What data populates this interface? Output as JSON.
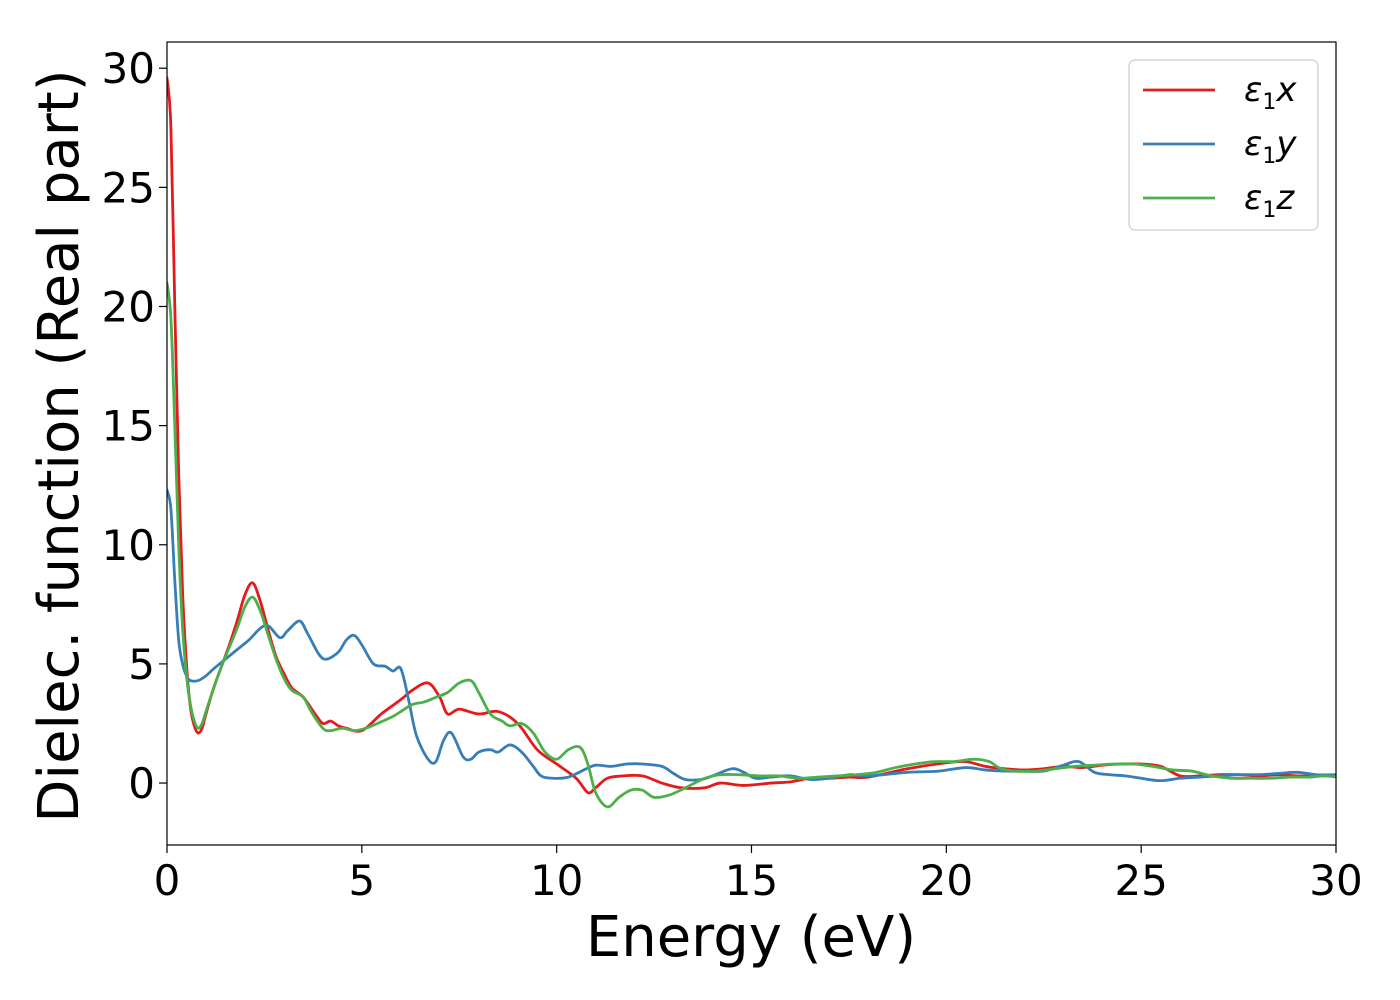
{
  "chart_data": {
    "type": "line",
    "title": "",
    "xlabel": "Energy (eV)",
    "ylabel": "Dielec. function (Real part)",
    "xlim": [
      0,
      30
    ],
    "ylim": [
      -2.6,
      31.1
    ],
    "xticks": [
      0,
      5,
      10,
      15,
      20,
      25,
      30
    ],
    "yticks": [
      0,
      5,
      10,
      15,
      20,
      25,
      30
    ],
    "grid": false,
    "legend_position": "top-right",
    "series": [
      {
        "name": "ε1x",
        "legend": {
          "base": "ε",
          "sub": "1",
          "axis": "x"
        },
        "color": "#e41a1c",
        "points": [
          [
            0.0,
            29.6
          ],
          [
            0.1,
            27.5
          ],
          [
            0.2,
            20.0
          ],
          [
            0.3,
            13.0
          ],
          [
            0.4,
            8.0
          ],
          [
            0.5,
            5.0
          ],
          [
            0.6,
            3.2
          ],
          [
            0.7,
            2.4
          ],
          [
            0.8,
            2.1
          ],
          [
            0.9,
            2.3
          ],
          [
            1.0,
            2.9
          ],
          [
            1.2,
            4.0
          ],
          [
            1.4,
            4.9
          ],
          [
            1.6,
            5.8
          ],
          [
            1.8,
            6.8
          ],
          [
            2.0,
            7.9
          ],
          [
            2.2,
            8.4
          ],
          [
            2.4,
            7.6
          ],
          [
            2.6,
            6.4
          ],
          [
            2.8,
            5.3
          ],
          [
            3.0,
            4.6
          ],
          [
            3.2,
            4.0
          ],
          [
            3.5,
            3.6
          ],
          [
            3.8,
            2.9
          ],
          [
            4.0,
            2.5
          ],
          [
            4.2,
            2.6
          ],
          [
            4.4,
            2.4
          ],
          [
            4.6,
            2.3
          ],
          [
            5.0,
            2.2
          ],
          [
            5.5,
            2.9
          ],
          [
            6.0,
            3.5
          ],
          [
            6.3,
            3.9
          ],
          [
            6.7,
            4.2
          ],
          [
            7.0,
            3.6
          ],
          [
            7.2,
            2.9
          ],
          [
            7.5,
            3.1
          ],
          [
            8.0,
            2.9
          ],
          [
            8.5,
            3.0
          ],
          [
            9.0,
            2.5
          ],
          [
            9.5,
            1.4
          ],
          [
            10.0,
            0.8
          ],
          [
            10.5,
            0.2
          ],
          [
            10.8,
            -0.4
          ],
          [
            11.0,
            -0.2
          ],
          [
            11.3,
            0.2
          ],
          [
            11.7,
            0.3
          ],
          [
            12.2,
            0.3
          ],
          [
            12.7,
            0.0
          ],
          [
            13.2,
            -0.2
          ],
          [
            13.8,
            -0.2
          ],
          [
            14.2,
            0.0
          ],
          [
            14.8,
            -0.1
          ],
          [
            15.5,
            0.0
          ],
          [
            16.0,
            0.05
          ],
          [
            16.5,
            0.2
          ],
          [
            17.0,
            0.2
          ],
          [
            17.5,
            0.25
          ],
          [
            18.0,
            0.25
          ],
          [
            19.0,
            0.6
          ],
          [
            20.0,
            0.85
          ],
          [
            20.5,
            0.9
          ],
          [
            21.0,
            0.7
          ],
          [
            21.5,
            0.6
          ],
          [
            22.0,
            0.55
          ],
          [
            22.5,
            0.6
          ],
          [
            23.0,
            0.7
          ],
          [
            23.5,
            0.65
          ],
          [
            24.0,
            0.75
          ],
          [
            24.5,
            0.8
          ],
          [
            25.0,
            0.8
          ],
          [
            25.5,
            0.7
          ],
          [
            26.0,
            0.3
          ],
          [
            26.5,
            0.3
          ],
          [
            27.0,
            0.35
          ],
          [
            27.5,
            0.35
          ],
          [
            28.0,
            0.3
          ],
          [
            28.5,
            0.35
          ],
          [
            29.0,
            0.3
          ],
          [
            29.5,
            0.3
          ],
          [
            30.0,
            0.3
          ]
        ]
      },
      {
        "name": "ε1y",
        "legend": {
          "base": "ε",
          "sub": "1",
          "axis": "y"
        },
        "color": "#377eb8",
        "points": [
          [
            0.0,
            12.3
          ],
          [
            0.1,
            11.5
          ],
          [
            0.2,
            8.5
          ],
          [
            0.3,
            6.0
          ],
          [
            0.4,
            5.0
          ],
          [
            0.5,
            4.5
          ],
          [
            0.6,
            4.3
          ],
          [
            0.8,
            4.3
          ],
          [
            1.0,
            4.5
          ],
          [
            1.2,
            4.8
          ],
          [
            1.5,
            5.2
          ],
          [
            1.8,
            5.6
          ],
          [
            2.1,
            6.0
          ],
          [
            2.4,
            6.5
          ],
          [
            2.6,
            6.6
          ],
          [
            2.9,
            6.1
          ],
          [
            3.1,
            6.4
          ],
          [
            3.4,
            6.8
          ],
          [
            3.6,
            6.3
          ],
          [
            3.9,
            5.4
          ],
          [
            4.1,
            5.2
          ],
          [
            4.4,
            5.5
          ],
          [
            4.6,
            6.0
          ],
          [
            4.8,
            6.2
          ],
          [
            5.0,
            5.8
          ],
          [
            5.3,
            5.0
          ],
          [
            5.6,
            4.9
          ],
          [
            5.8,
            4.7
          ],
          [
            6.0,
            4.8
          ],
          [
            6.2,
            3.5
          ],
          [
            6.4,
            2.0
          ],
          [
            6.7,
            1.0
          ],
          [
            6.9,
            0.9
          ],
          [
            7.1,
            1.8
          ],
          [
            7.3,
            2.1
          ],
          [
            7.6,
            1.1
          ],
          [
            7.8,
            1.0
          ],
          [
            8.0,
            1.3
          ],
          [
            8.3,
            1.4
          ],
          [
            8.5,
            1.3
          ],
          [
            8.8,
            1.6
          ],
          [
            9.1,
            1.3
          ],
          [
            9.4,
            0.7
          ],
          [
            9.6,
            0.3
          ],
          [
            9.9,
            0.2
          ],
          [
            10.3,
            0.25
          ],
          [
            10.7,
            0.55
          ],
          [
            11.0,
            0.75
          ],
          [
            11.4,
            0.7
          ],
          [
            11.8,
            0.8
          ],
          [
            12.2,
            0.8
          ],
          [
            12.7,
            0.7
          ],
          [
            13.0,
            0.4
          ],
          [
            13.3,
            0.15
          ],
          [
            13.7,
            0.15
          ],
          [
            14.0,
            0.3
          ],
          [
            14.5,
            0.6
          ],
          [
            14.8,
            0.45
          ],
          [
            15.1,
            0.2
          ],
          [
            15.5,
            0.25
          ],
          [
            16.0,
            0.3
          ],
          [
            16.5,
            0.15
          ],
          [
            17.0,
            0.2
          ],
          [
            17.5,
            0.35
          ],
          [
            18.0,
            0.3
          ],
          [
            19.0,
            0.45
          ],
          [
            19.8,
            0.5
          ],
          [
            20.5,
            0.65
          ],
          [
            21.0,
            0.55
          ],
          [
            21.5,
            0.5
          ],
          [
            22.0,
            0.5
          ],
          [
            22.5,
            0.5
          ],
          [
            23.0,
            0.75
          ],
          [
            23.4,
            0.9
          ],
          [
            23.8,
            0.45
          ],
          [
            24.2,
            0.35
          ],
          [
            24.6,
            0.3
          ],
          [
            25.0,
            0.2
          ],
          [
            25.5,
            0.1
          ],
          [
            26.0,
            0.2
          ],
          [
            26.5,
            0.25
          ],
          [
            27.0,
            0.3
          ],
          [
            27.5,
            0.35
          ],
          [
            28.0,
            0.35
          ],
          [
            28.5,
            0.4
          ],
          [
            29.0,
            0.45
          ],
          [
            29.5,
            0.35
          ],
          [
            30.0,
            0.35
          ]
        ]
      },
      {
        "name": "ε1z",
        "legend": {
          "base": "ε",
          "sub": "1",
          "axis": "z"
        },
        "color": "#4daf4a",
        "points": [
          [
            0.0,
            21.0
          ],
          [
            0.1,
            19.5
          ],
          [
            0.2,
            15.0
          ],
          [
            0.3,
            10.0
          ],
          [
            0.4,
            6.5
          ],
          [
            0.5,
            4.5
          ],
          [
            0.6,
            3.3
          ],
          [
            0.7,
            2.6
          ],
          [
            0.8,
            2.3
          ],
          [
            0.9,
            2.5
          ],
          [
            1.0,
            3.0
          ],
          [
            1.2,
            4.0
          ],
          [
            1.4,
            4.9
          ],
          [
            1.6,
            5.7
          ],
          [
            1.8,
            6.5
          ],
          [
            2.0,
            7.4
          ],
          [
            2.2,
            7.8
          ],
          [
            2.4,
            7.2
          ],
          [
            2.6,
            6.2
          ],
          [
            2.8,
            5.2
          ],
          [
            3.0,
            4.4
          ],
          [
            3.2,
            3.9
          ],
          [
            3.5,
            3.6
          ],
          [
            3.7,
            3.0
          ],
          [
            4.0,
            2.3
          ],
          [
            4.2,
            2.2
          ],
          [
            4.5,
            2.3
          ],
          [
            4.8,
            2.2
          ],
          [
            5.1,
            2.3
          ],
          [
            5.4,
            2.5
          ],
          [
            5.8,
            2.8
          ],
          [
            6.0,
            3.0
          ],
          [
            6.3,
            3.3
          ],
          [
            6.6,
            3.4
          ],
          [
            6.9,
            3.6
          ],
          [
            7.2,
            3.8
          ],
          [
            7.5,
            4.2
          ],
          [
            7.8,
            4.3
          ],
          [
            8.0,
            3.8
          ],
          [
            8.3,
            2.9
          ],
          [
            8.6,
            2.6
          ],
          [
            8.8,
            2.4
          ],
          [
            9.1,
            2.5
          ],
          [
            9.4,
            2.1
          ],
          [
            9.7,
            1.3
          ],
          [
            10.0,
            1.0
          ],
          [
            10.3,
            1.4
          ],
          [
            10.6,
            1.5
          ],
          [
            10.8,
            0.8
          ],
          [
            11.0,
            -0.4
          ],
          [
            11.3,
            -1.0
          ],
          [
            11.6,
            -0.6
          ],
          [
            11.9,
            -0.3
          ],
          [
            12.2,
            -0.3
          ],
          [
            12.5,
            -0.6
          ],
          [
            12.9,
            -0.5
          ],
          [
            13.3,
            -0.2
          ],
          [
            13.8,
            0.2
          ],
          [
            14.2,
            0.35
          ],
          [
            14.7,
            0.35
          ],
          [
            15.2,
            0.3
          ],
          [
            15.7,
            0.3
          ],
          [
            16.2,
            0.2
          ],
          [
            16.7,
            0.25
          ],
          [
            17.2,
            0.3
          ],
          [
            17.7,
            0.35
          ],
          [
            18.2,
            0.45
          ],
          [
            18.7,
            0.65
          ],
          [
            19.2,
            0.8
          ],
          [
            19.7,
            0.9
          ],
          [
            20.2,
            0.9
          ],
          [
            20.7,
            1.0
          ],
          [
            21.1,
            0.9
          ],
          [
            21.4,
            0.6
          ],
          [
            21.8,
            0.5
          ],
          [
            22.3,
            0.5
          ],
          [
            22.8,
            0.6
          ],
          [
            23.3,
            0.7
          ],
          [
            23.8,
            0.75
          ],
          [
            24.3,
            0.8
          ],
          [
            24.8,
            0.8
          ],
          [
            25.3,
            0.7
          ],
          [
            25.8,
            0.55
          ],
          [
            26.3,
            0.5
          ],
          [
            26.8,
            0.3
          ],
          [
            27.3,
            0.2
          ],
          [
            27.8,
            0.2
          ],
          [
            28.3,
            0.2
          ],
          [
            28.8,
            0.25
          ],
          [
            29.3,
            0.25
          ],
          [
            29.7,
            0.3
          ],
          [
            30.0,
            0.25
          ]
        ]
      }
    ]
  }
}
